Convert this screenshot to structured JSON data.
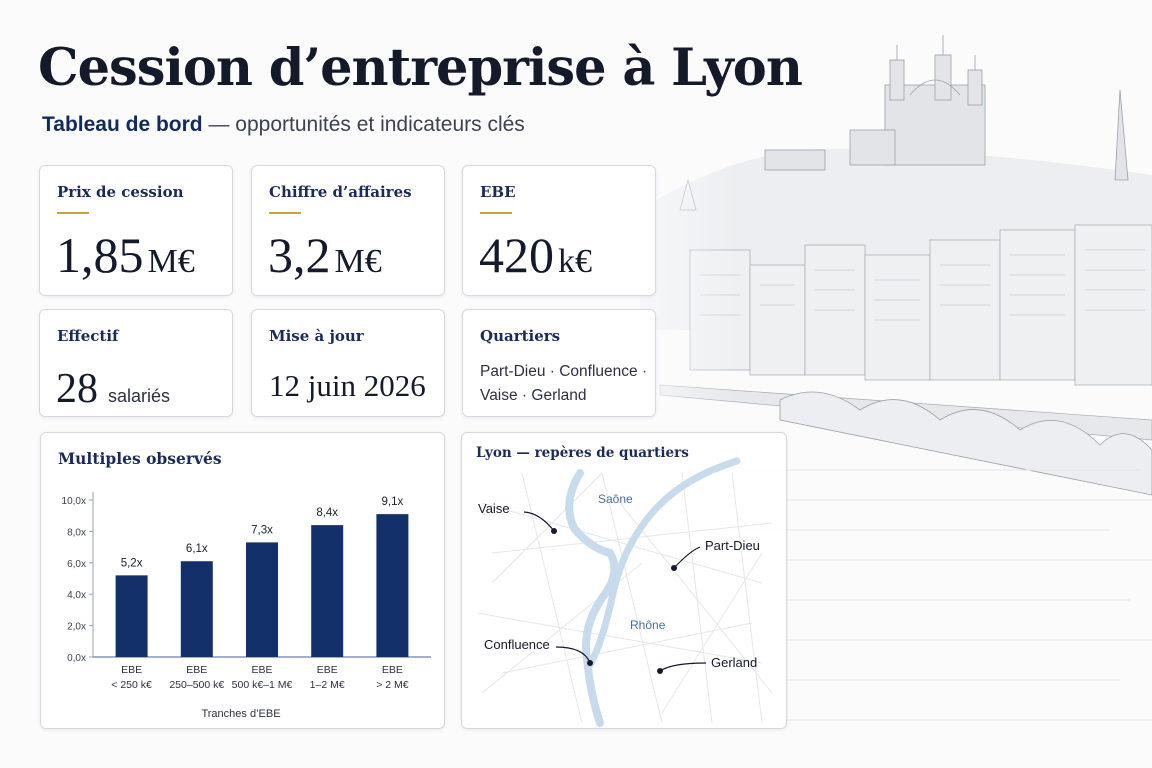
{
  "header": {
    "title": "Cession d’entreprise à Lyon",
    "subtitle_bold": "Tableau de bord",
    "subtitle_rest": " — opportunités et indicateurs clés"
  },
  "kpis": {
    "prix": {
      "label": "Prix de cession",
      "value": "1,85",
      "unit": "M€"
    },
    "ca": {
      "label": "Chiffre d’affaires",
      "value": "3,2",
      "unit": "M€"
    },
    "ebe": {
      "label": "EBE",
      "value": "420",
      "unit": "k€"
    },
    "effectif": {
      "label": "Effectif",
      "value": "28",
      "unit": "salariés"
    },
    "maj": {
      "label": "Mise à jour",
      "value": "12 juin 2026"
    },
    "quartiers": {
      "label": "Quartiers",
      "line1": "Part-Dieu · Confluence ·",
      "line2": "Vaise · Gerland"
    }
  },
  "chart_data": {
    "type": "bar",
    "title": "Multiples observés",
    "xlabel": "Tranches d’EBE",
    "ylabel": "",
    "categories": [
      [
        "EBE",
        "< 250 k€"
      ],
      [
        "EBE",
        "250–500 k€"
      ],
      [
        "EBE",
        "500 k€–1 M€"
      ],
      [
        "EBE",
        "1–2 M€"
      ],
      [
        "EBE",
        "> 2 M€"
      ]
    ],
    "values": [
      5.2,
      6.1,
      7.3,
      8.4,
      9.1
    ],
    "value_labels": [
      "5,2x",
      "6,1x",
      "7,3x",
      "8,4x",
      "9,1x"
    ],
    "yticks": [
      "0,0x",
      "2,0x",
      "4,0x",
      "6,0x",
      "8,0x",
      "10,0x"
    ],
    "ylim": [
      0,
      10
    ],
    "bar_color": "#13306b",
    "grid": false
  },
  "map": {
    "title": "Lyon — repères de quartiers",
    "rivers": [
      "Saône",
      "Rhône"
    ],
    "labels": [
      "Vaise",
      "Part-Dieu",
      "Confluence",
      "Gerland"
    ],
    "river_color": "#c8dbec"
  },
  "colors": {
    "accent": "#c9a23a",
    "navy": "#1b2b59"
  }
}
